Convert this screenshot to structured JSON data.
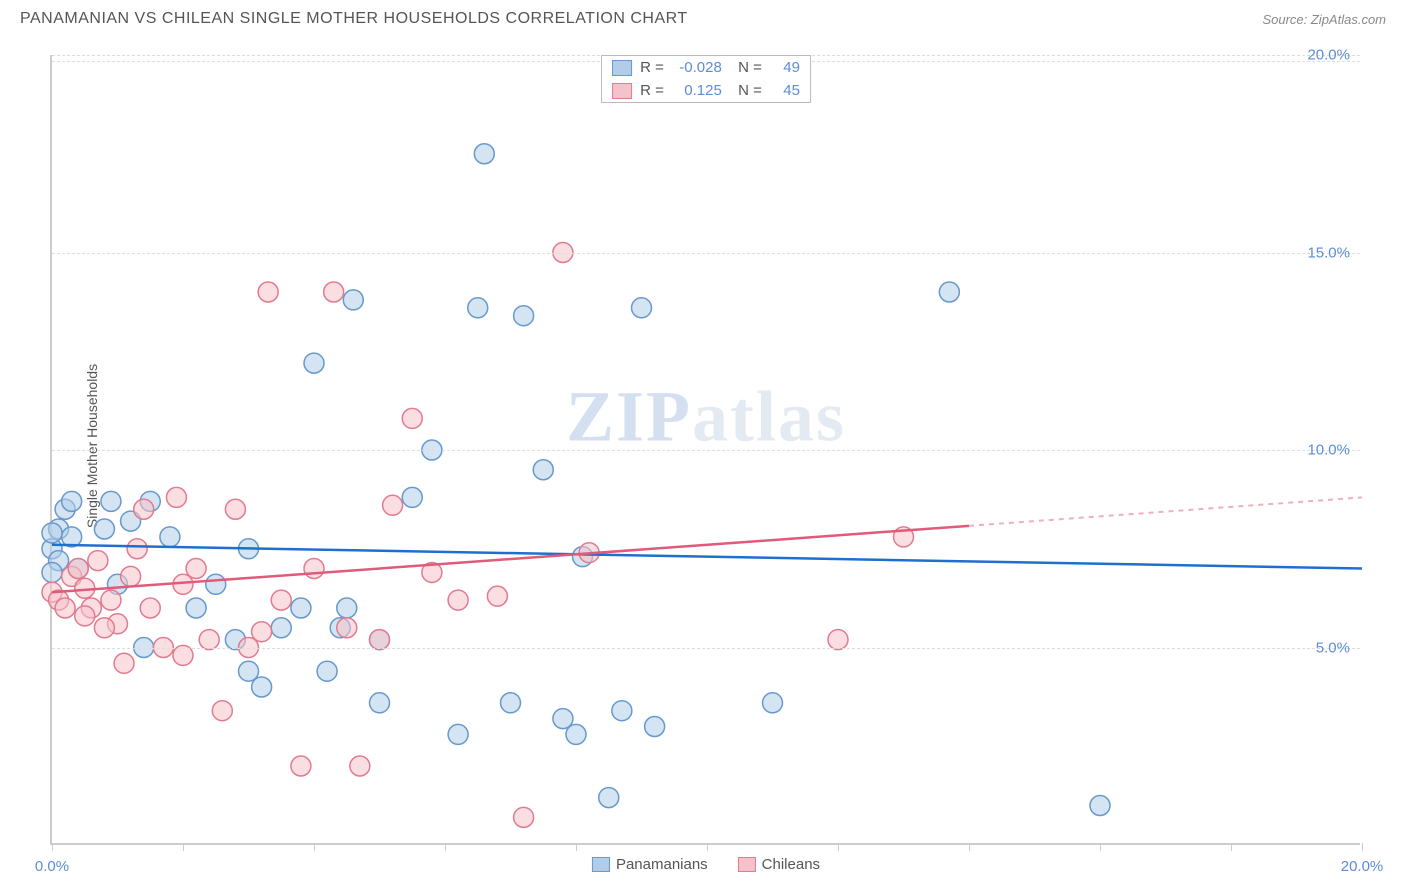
{
  "header": {
    "title": "PANAMANIAN VS CHILEAN SINGLE MOTHER HOUSEHOLDS CORRELATION CHART",
    "source": "Source: ZipAtlas.com"
  },
  "chart": {
    "type": "scatter",
    "y_axis_label": "Single Mother Households",
    "watermark": "ZIPatlas",
    "background_color": "#ffffff",
    "grid_color": "#dddddd",
    "axis_color": "#cccccc",
    "tick_label_color": "#5b8ed6",
    "xlim": [
      0,
      20
    ],
    "ylim": [
      0,
      20
    ],
    "x_ticks": [
      0,
      2,
      4,
      6,
      8,
      10,
      12,
      14,
      16,
      18,
      20
    ],
    "x_tick_labels": {
      "0": "0.0%",
      "20": "20.0%"
    },
    "y_ticks": [
      5,
      10,
      15,
      20
    ],
    "y_tick_labels": {
      "5": "5.0%",
      "10": "10.0%",
      "15": "15.0%",
      "20": "20.0%"
    },
    "marker_radius": 10,
    "marker_opacity": 0.55,
    "series": [
      {
        "name": "Panamanians",
        "color_fill": "#b3cde8",
        "color_stroke": "#6699cc",
        "trend_color": "#1f6fd0",
        "trend_dash_color": "#7aa7d8",
        "R": "-0.028",
        "N": "49",
        "trend": {
          "x1": 0,
          "y1": 7.6,
          "x2": 20,
          "y2": 7.0,
          "solid_until_x": 20
        },
        "points": [
          [
            0.0,
            7.5
          ],
          [
            0.1,
            8.0
          ],
          [
            0.1,
            7.2
          ],
          [
            0.2,
            8.5
          ],
          [
            0.3,
            7.8
          ],
          [
            0.3,
            8.7
          ],
          [
            0.4,
            7.0
          ],
          [
            0.8,
            8.0
          ],
          [
            0.9,
            8.7
          ],
          [
            1.0,
            6.6
          ],
          [
            1.2,
            8.2
          ],
          [
            1.4,
            5.0
          ],
          [
            1.5,
            8.7
          ],
          [
            1.8,
            7.8
          ],
          [
            2.2,
            6.0
          ],
          [
            2.5,
            6.6
          ],
          [
            2.8,
            5.2
          ],
          [
            3.0,
            4.4
          ],
          [
            3.0,
            7.5
          ],
          [
            3.2,
            4.0
          ],
          [
            3.5,
            5.5
          ],
          [
            3.8,
            6.0
          ],
          [
            4.0,
            12.2
          ],
          [
            4.2,
            4.4
          ],
          [
            4.4,
            5.5
          ],
          [
            4.5,
            6.0
          ],
          [
            4.6,
            13.8
          ],
          [
            5.0,
            5.2
          ],
          [
            5.0,
            3.6
          ],
          [
            5.5,
            8.8
          ],
          [
            5.8,
            10.0
          ],
          [
            6.2,
            2.8
          ],
          [
            6.5,
            13.6
          ],
          [
            6.6,
            17.5
          ],
          [
            7.0,
            3.6
          ],
          [
            7.2,
            13.4
          ],
          [
            7.5,
            9.5
          ],
          [
            7.8,
            3.2
          ],
          [
            8.0,
            2.8
          ],
          [
            8.1,
            7.3
          ],
          [
            8.5,
            1.2
          ],
          [
            8.7,
            3.4
          ],
          [
            9.0,
            13.6
          ],
          [
            9.2,
            3.0
          ],
          [
            11.0,
            3.6
          ],
          [
            13.7,
            14.0
          ],
          [
            16.0,
            1.0
          ],
          [
            0.0,
            7.9
          ],
          [
            0.0,
            6.9
          ]
        ]
      },
      {
        "name": "Chileans",
        "color_fill": "#f5c2cb",
        "color_stroke": "#e27b8f",
        "trend_color": "#e05a7a",
        "trend_dash_color": "#eeb0bd",
        "R": "0.125",
        "N": "45",
        "trend": {
          "x1": 0,
          "y1": 6.4,
          "x2": 20,
          "y2": 8.8,
          "solid_until_x": 14
        },
        "points": [
          [
            0.0,
            6.4
          ],
          [
            0.1,
            6.2
          ],
          [
            0.2,
            6.0
          ],
          [
            0.3,
            6.8
          ],
          [
            0.4,
            7.0
          ],
          [
            0.5,
            6.5
          ],
          [
            0.6,
            6.0
          ],
          [
            0.7,
            7.2
          ],
          [
            0.9,
            6.2
          ],
          [
            1.0,
            5.6
          ],
          [
            1.2,
            6.8
          ],
          [
            1.4,
            8.5
          ],
          [
            1.5,
            6.0
          ],
          [
            1.7,
            5.0
          ],
          [
            1.9,
            8.8
          ],
          [
            2.0,
            6.6
          ],
          [
            2.2,
            7.0
          ],
          [
            2.4,
            5.2
          ],
          [
            2.6,
            3.4
          ],
          [
            2.8,
            8.5
          ],
          [
            3.0,
            5.0
          ],
          [
            3.2,
            5.4
          ],
          [
            3.3,
            14.0
          ],
          [
            3.5,
            6.2
          ],
          [
            3.8,
            2.0
          ],
          [
            4.0,
            7.0
          ],
          [
            4.3,
            14.0
          ],
          [
            4.5,
            5.5
          ],
          [
            4.7,
            2.0
          ],
          [
            5.0,
            5.2
          ],
          [
            5.2,
            8.6
          ],
          [
            5.5,
            10.8
          ],
          [
            5.8,
            6.9
          ],
          [
            6.2,
            6.2
          ],
          [
            6.8,
            6.3
          ],
          [
            7.2,
            0.7
          ],
          [
            7.8,
            15.0
          ],
          [
            8.2,
            7.4
          ],
          [
            12.0,
            5.2
          ],
          [
            13.0,
            7.8
          ],
          [
            2.0,
            4.8
          ],
          [
            1.1,
            4.6
          ],
          [
            0.8,
            5.5
          ],
          [
            0.5,
            5.8
          ],
          [
            1.3,
            7.5
          ]
        ]
      }
    ],
    "correlation_box": {
      "rows": [
        {
          "swatch_fill": "#b3cde8",
          "swatch_stroke": "#6699cc",
          "R": "-0.028",
          "N": "49"
        },
        {
          "swatch_fill": "#f5c2cb",
          "swatch_stroke": "#e27b8f",
          "R": "0.125",
          "N": "45"
        }
      ]
    },
    "bottom_legend": [
      {
        "label": "Panamanians",
        "swatch_fill": "#b3cde8",
        "swatch_stroke": "#6699cc"
      },
      {
        "label": "Chileans",
        "swatch_fill": "#f5c2cb",
        "swatch_stroke": "#e27b8f"
      }
    ]
  }
}
